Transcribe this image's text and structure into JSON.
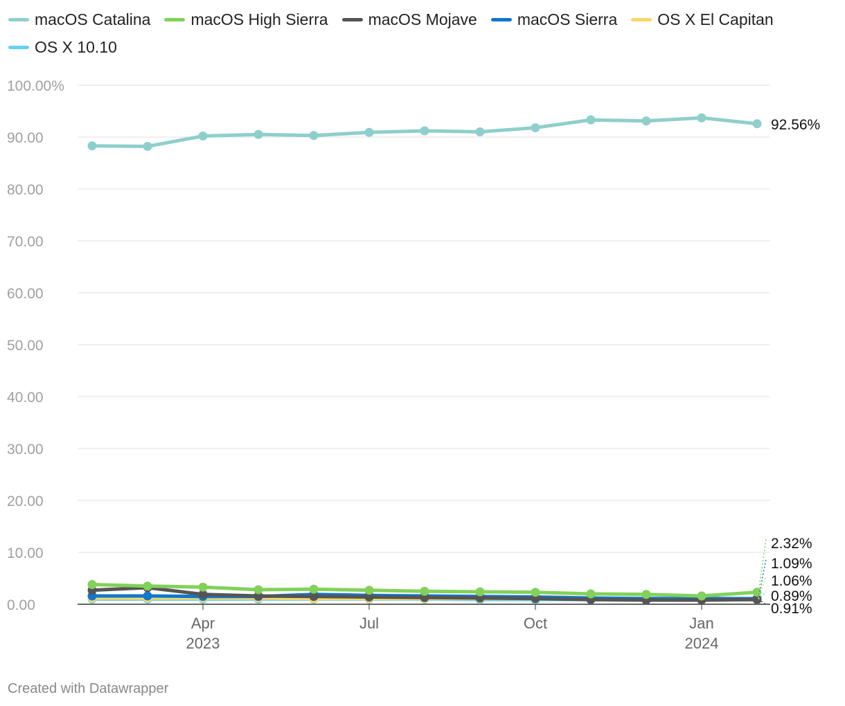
{
  "chart_data": {
    "type": "line",
    "title": "",
    "xlabel": "",
    "ylabel": "",
    "ylim": [
      0,
      100
    ],
    "y_ticks": [
      "100.00%",
      "90.00",
      "80.00",
      "70.00",
      "60.00",
      "50.00",
      "40.00",
      "30.00",
      "20.00",
      "10.00",
      "0.00"
    ],
    "y_tick_values": [
      100,
      90,
      80,
      70,
      60,
      50,
      40,
      30,
      20,
      10,
      0
    ],
    "x_index_range": [
      0,
      12
    ],
    "x_ticks": [
      {
        "index": 2,
        "month": "Apr",
        "year": "2023"
      },
      {
        "index": 5,
        "month": "Jul",
        "year": ""
      },
      {
        "index": 8,
        "month": "Oct",
        "year": ""
      },
      {
        "index": 11,
        "month": "Jan",
        "year": "2024"
      }
    ],
    "series": [
      {
        "name": "macOS Catalina",
        "color": "#8ecfcb",
        "values": [
          88.3,
          88.2,
          90.2,
          90.5,
          90.3,
          90.9,
          91.2,
          91.0,
          91.8,
          93.3,
          93.1,
          93.7,
          92.56
        ],
        "end_label": "92.56%"
      },
      {
        "name": "macOS High Sierra",
        "color": "#82d15a",
        "values": [
          3.8,
          3.5,
          3.3,
          2.8,
          2.9,
          2.7,
          2.5,
          2.4,
          2.3,
          2.0,
          1.9,
          1.6,
          2.32
        ],
        "end_label": "2.32%"
      },
      {
        "name": "macOS Mojave",
        "color": "#555555",
        "values": [
          2.7,
          3.2,
          1.9,
          1.6,
          1.5,
          1.4,
          1.3,
          1.2,
          1.1,
          0.9,
          0.8,
          0.8,
          0.91
        ],
        "end_label": "0.91%"
      },
      {
        "name": "macOS Sierra",
        "color": "#1177cc",
        "values": [
          1.6,
          1.6,
          1.5,
          1.5,
          1.9,
          1.7,
          1.6,
          1.5,
          1.4,
          1.2,
          1.1,
          1.1,
          1.09
        ],
        "end_label": "1.09%"
      },
      {
        "name": "OS X El Capitan",
        "color": "#f5d86a",
        "values": [
          1.2,
          1.2,
          1.2,
          1.2,
          1.1,
          1.1,
          1.1,
          1.1,
          1.1,
          1.0,
          1.0,
          1.0,
          1.06
        ],
        "end_label": "1.06%"
      },
      {
        "name": "OS X 10.10",
        "color": "#66d0f0",
        "values": [
          1.0,
          1.0,
          1.0,
          1.0,
          1.0,
          1.0,
          1.0,
          0.9,
          0.9,
          0.9,
          0.9,
          0.9,
          0.89
        ],
        "end_label": "0.89%"
      }
    ]
  },
  "footer": {
    "credit": "Created with Datawrapper"
  }
}
